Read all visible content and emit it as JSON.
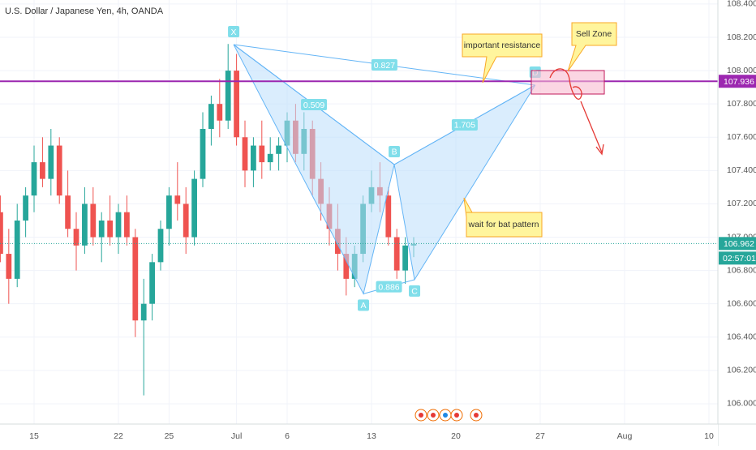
{
  "chart_data": {
    "type": "candlestick",
    "title": "U.S. Dollar / Japanese Yen, 4h, OANDA",
    "x": [
      -2,
      -1.5,
      -1,
      -0.5,
      0,
      0.5,
      1,
      1.5,
      2,
      2.5,
      3,
      3.5,
      4,
      4.5,
      5,
      5.5,
      6,
      6.5,
      7,
      7.5,
      8,
      8.5,
      9,
      9.5,
      10,
      10.5,
      11,
      11.5,
      12,
      12.5,
      13,
      13.5,
      14,
      14.5,
      15,
      15.5,
      16,
      16.5,
      17,
      17.5,
      18,
      18.5,
      19,
      19.5,
      20,
      20.5,
      21,
      21.5,
      22,
      22.5
    ],
    "open": [
      107.15,
      106.9,
      106.75,
      107.1,
      107.25,
      107.45,
      107.35,
      107.55,
      107.25,
      107.05,
      106.95,
      107.2,
      107.0,
      107.1,
      107.0,
      107.15,
      107.0,
      106.5,
      106.6,
      106.85,
      107.05,
      107.25,
      107.2,
      107.0,
      107.35,
      107.65,
      107.8,
      107.7,
      108.0,
      107.6,
      107.4,
      107.55,
      107.45,
      107.5,
      107.55,
      107.7,
      107.5,
      107.65,
      107.35,
      107.2,
      107.05,
      106.9,
      106.75,
      106.9,
      107.2,
      107.3,
      107.25,
      107.0,
      106.8,
      106.95
    ],
    "high": [
      107.25,
      107.05,
      107.2,
      107.3,
      107.55,
      107.6,
      107.65,
      107.6,
      107.4,
      107.15,
      107.3,
      107.3,
      107.15,
      107.25,
      107.2,
      107.25,
      107.05,
      106.75,
      106.9,
      107.1,
      107.3,
      107.45,
      107.3,
      107.4,
      107.75,
      107.85,
      107.95,
      108.16,
      108.1,
      107.7,
      107.6,
      107.7,
      107.6,
      107.6,
      107.75,
      107.8,
      107.75,
      107.7,
      107.45,
      107.3,
      107.2,
      107.0,
      106.95,
      107.25,
      107.4,
      107.45,
      107.3,
      107.05,
      107.0,
      107.0
    ],
    "low": [
      106.85,
      106.6,
      106.7,
      107.0,
      107.15,
      107.3,
      107.25,
      107.2,
      107.0,
      106.8,
      106.9,
      106.95,
      106.85,
      106.95,
      106.9,
      106.95,
      106.4,
      106.05,
      106.5,
      106.8,
      106.95,
      107.1,
      106.9,
      106.95,
      107.3,
      107.55,
      107.6,
      107.65,
      107.55,
      107.3,
      107.3,
      107.35,
      107.4,
      107.4,
      107.45,
      107.45,
      107.4,
      107.25,
      107.1,
      106.95,
      106.8,
      106.65,
      106.7,
      106.85,
      107.15,
      107.15,
      106.95,
      106.75,
      106.72,
      106.88
    ],
    "close": [
      106.9,
      106.75,
      107.1,
      107.25,
      107.45,
      107.35,
      107.55,
      107.25,
      107.05,
      106.95,
      107.2,
      107.0,
      107.1,
      107.0,
      107.15,
      107.0,
      106.5,
      106.6,
      106.85,
      107.05,
      107.25,
      107.2,
      107.0,
      107.35,
      107.65,
      107.8,
      107.7,
      108.0,
      107.6,
      107.4,
      107.55,
      107.45,
      107.5,
      107.55,
      107.7,
      107.5,
      107.65,
      107.35,
      107.2,
      107.05,
      106.9,
      106.75,
      106.9,
      107.2,
      107.3,
      107.25,
      107.0,
      106.8,
      106.95,
      106.96
    ],
    "up_color": "#26a69a",
    "down_color": "#ef5350",
    "xlim": [
      -2.02,
      40.53
    ],
    "xticks": [
      {
        "value": 0,
        "label": "15"
      },
      {
        "value": 5,
        "label": "22"
      },
      {
        "value": 8,
        "label": "25"
      },
      {
        "value": 12,
        "label": "Jul"
      },
      {
        "value": 15,
        "label": "6"
      },
      {
        "value": 20,
        "label": "13"
      },
      {
        "value": 25,
        "label": "20"
      },
      {
        "value": 30,
        "label": "27"
      },
      {
        "value": 35,
        "label": "Aug"
      },
      {
        "value": 40,
        "label": "10"
      }
    ],
    "ylim": [
      105.878,
      108.424
    ],
    "yticks": [
      {
        "value": 108.4,
        "label": "108.400"
      },
      {
        "value": 108.2,
        "label": "108.200"
      },
      {
        "value": 108,
        "label": "108.000"
      },
      {
        "value": 107.8,
        "label": "107.800"
      },
      {
        "value": 107.6,
        "label": "107.600"
      },
      {
        "value": 107.4,
        "label": "107.400"
      },
      {
        "value": 107.2,
        "label": "107.200"
      },
      {
        "value": 107,
        "label": "107.000"
      },
      {
        "value": 106.8,
        "label": "106.800"
      },
      {
        "value": 106.6,
        "label": "106.600"
      },
      {
        "value": 106.4,
        "label": "106.400"
      },
      {
        "value": 106.2,
        "label": "106.200"
      },
      {
        "value": 106,
        "label": "106.000"
      }
    ],
    "grid": true,
    "lines": [
      {
        "value": 107.936,
        "color": "#9c27b0"
      },
      {
        "value": 106.962,
        "color": "#26a69a"
      }
    ],
    "countdown": "02:57:01",
    "pattern": {
      "points": [
        {
          "name": "X",
          "x": 11.83,
          "price": 108.156
        },
        {
          "name": "A",
          "x": 19.52,
          "price": 106.66
        },
        {
          "name": "B",
          "x": 21.35,
          "price": 107.436
        },
        {
          "name": "C",
          "x": 22.55,
          "price": 106.745
        },
        {
          "name": "D",
          "x": 29.7,
          "price": 107.913
        }
      ],
      "ratios": [
        {
          "from": "X",
          "to": "D",
          "value": 0.827
        },
        {
          "from": "X",
          "to": "B",
          "value": 0.509
        },
        {
          "from": "B",
          "to": "D",
          "value": 1.705
        },
        {
          "from": "A",
          "to": "C",
          "value": 0.886
        }
      ]
    },
    "annotations": [
      "important resistance",
      "Sell Zone",
      "wait for bat pattern"
    ]
  }
}
